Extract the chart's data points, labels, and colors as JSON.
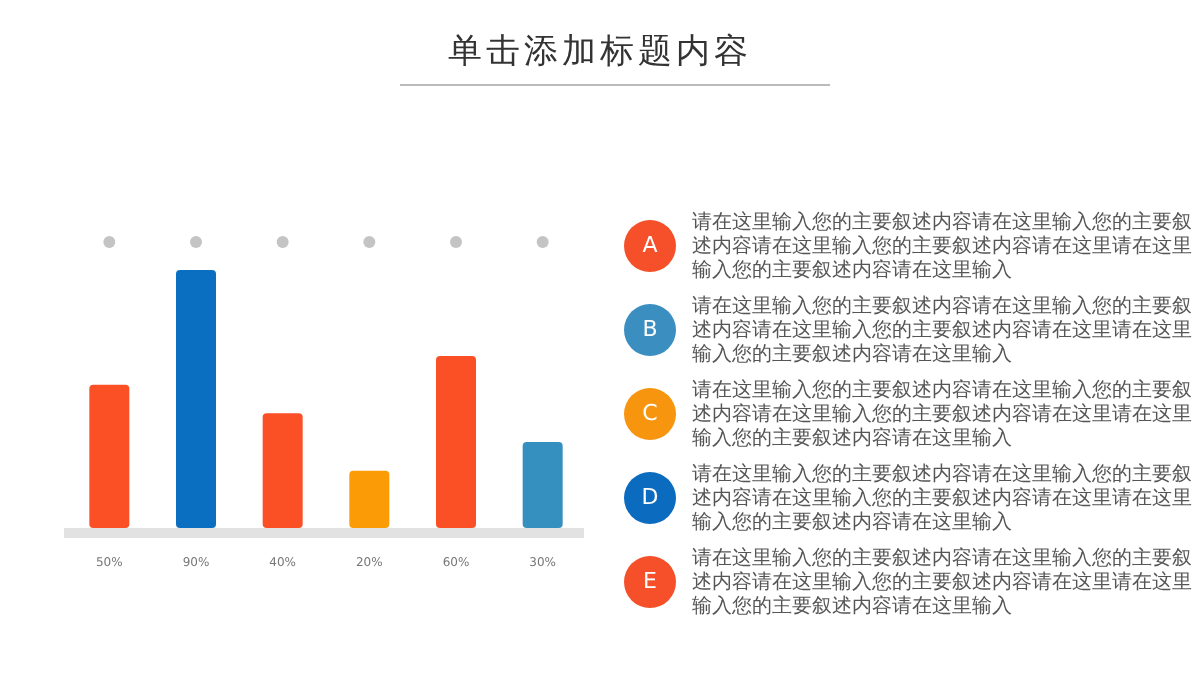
{
  "chart_data": [
    {
      "type": "bar",
      "title": "单击添加标题内容",
      "categories": [
        null,
        null,
        null,
        null,
        null,
        null
      ],
      "values": [
        50,
        90,
        40,
        20,
        60,
        30
      ],
      "value_labels": [
        "50%",
        "90%",
        "40%",
        "20%",
        "60%",
        "30%"
      ],
      "colors": [
        "#fb4f25",
        "#0a6fc0",
        "#fb4f25",
        "#fb9b06",
        "#fb4f25",
        "#3590c0"
      ],
      "tick_labels": "x"
    },
    {
      "type": "other",
      "categories": [
        "A",
        "B",
        "C",
        "D",
        "E"
      ],
      "colors": [
        "#f5502a",
        "#3a8fc0",
        "#f7960e",
        "#0b6bbf",
        "#f5502a"
      ],
      "annotations": [
        "请在这里输入您的主要叙述内容请在这里输入您的主要叙述内容请在这里输入您的主要叙述内容请在这里请在这里输入您的主要叙述内容请在这里输入",
        "请在这里输入您的主要叙述内容请在这里输入您的主要叙述内容请在这里输入您的主要叙述内容请在这里请在这里输入您的主要叙述内容请在这里输入",
        "请在这里输入您的主要叙述内容请在这里输入您的主要叙述内容请在这里输入您的主要叙述内容请在这里请在这里输入您的主要叙述内容请在这里输入",
        "请在这里输入您的主要叙述内容请在这里输入您的主要叙述内容请在这里输入您的主要叙述内容请在这里请在这里输入您的主要叙述内容请在这里输入",
        "请在这里输入您的主要叙述内容请在这里输入您的主要叙述内容请在这里输入您的主要叙述内容请在这里请在这里输入您的主要叙述内容请在这里输入"
      ]
    }
  ]
}
